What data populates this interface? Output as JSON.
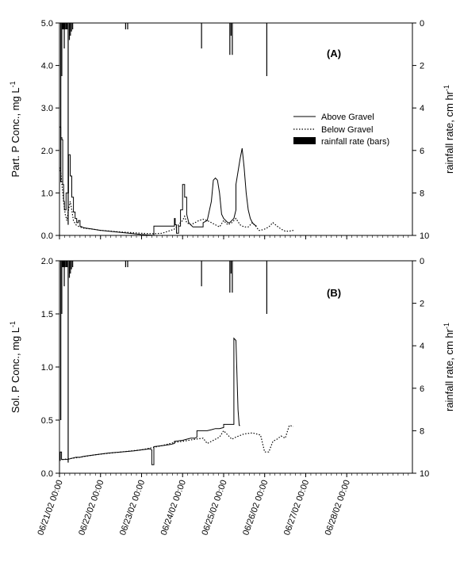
{
  "chart_data": [
    {
      "type": "line",
      "panel_label": "(A)",
      "ylabel_prefix": "Part. P Conc., mg L",
      "ylabel_sup": "-1",
      "y2label_prefix": "rainfall rate, cm hr",
      "y2label_sup": "-1",
      "ylim": [
        0,
        5.0
      ],
      "y_ticks": [
        "0.0",
        "1.0",
        "2.0",
        "3.0",
        "4.0",
        "5.0"
      ],
      "y2lim": [
        0,
        10
      ],
      "y2_reversed": true,
      "y2_ticks": [
        "0",
        "2",
        "4",
        "6",
        "8",
        "10"
      ],
      "xlim": [
        0,
        8.6
      ],
      "legend": {
        "position": "right",
        "items": [
          {
            "label": "Above Gravel",
            "style": "solid"
          },
          {
            "label": "Below Gravel",
            "style": "dotted"
          },
          {
            "label": "rainfall rate (bars)",
            "style": "bar"
          }
        ]
      },
      "series": [
        {
          "name": "Above Gravel",
          "style": "solid",
          "x": [
            0.0,
            0.03,
            0.03,
            0.06,
            0.06,
            0.08,
            0.08,
            0.1,
            0.1,
            0.12,
            0.12,
            0.16,
            0.16,
            0.22,
            0.22,
            0.26,
            0.26,
            0.3,
            0.3,
            0.34,
            0.34,
            0.38,
            0.38,
            0.42,
            0.42,
            0.46,
            0.46,
            0.5,
            0.5,
            0.55,
            0.6,
            0.8,
            1.0,
            1.5,
            2.0,
            2.2,
            2.3,
            2.3,
            2.8,
            2.8,
            2.82,
            2.82,
            2.85,
            2.85,
            2.9,
            2.9,
            2.95,
            2.95,
            3.0,
            3.0,
            3.05,
            3.05,
            3.1,
            3.1,
            3.15,
            3.2,
            3.25,
            3.3,
            3.35,
            3.4,
            3.5,
            3.5,
            3.6,
            3.7,
            3.75,
            3.8,
            3.85,
            3.9,
            3.95,
            4.0,
            4.05,
            4.1,
            4.15,
            4.2,
            4.25,
            4.3,
            4.3,
            4.4,
            4.45,
            4.5,
            4.55,
            4.6,
            4.65,
            4.7,
            4.75,
            4.8,
            4.8
          ],
          "y": [
            2.55,
            2.55,
            2.3,
            2.3,
            2.25,
            2.25,
            1.2,
            1.2,
            0.8,
            0.8,
            0.6,
            0.6,
            1.0,
            1.0,
            1.9,
            1.9,
            1.4,
            1.4,
            0.9,
            0.9,
            0.55,
            0.55,
            0.4,
            0.4,
            0.3,
            0.3,
            0.35,
            0.35,
            0.22,
            0.2,
            0.18,
            0.15,
            0.12,
            0.07,
            0.02,
            0.01,
            0.0,
            0.22,
            0.22,
            0.4,
            0.4,
            0.25,
            0.25,
            0.05,
            0.05,
            0.22,
            0.22,
            0.6,
            0.6,
            1.2,
            1.2,
            0.9,
            0.9,
            0.5,
            0.3,
            0.25,
            0.2,
            0.2,
            0.2,
            0.2,
            0.2,
            0.3,
            0.35,
            0.8,
            1.3,
            1.35,
            1.3,
            1.0,
            0.5,
            0.4,
            0.35,
            0.3,
            0.3,
            0.35,
            0.4,
            0.6,
            1.2,
            1.8,
            2.05,
            1.6,
            1.0,
            0.6,
            0.4,
            0.3,
            0.25,
            0.22,
            0.22
          ]
        },
        {
          "name": "Below Gravel",
          "style": "dotted",
          "x": [
            0.0,
            0.03,
            0.06,
            0.1,
            0.14,
            0.18,
            0.22,
            0.26,
            0.3,
            0.34,
            0.4,
            0.45,
            0.5,
            0.55,
            0.6,
            0.8,
            1.0,
            1.5,
            2.0,
            2.3,
            2.5,
            2.8,
            3.0,
            3.05,
            3.1,
            3.2,
            3.3,
            3.4,
            3.5,
            3.6,
            3.7,
            3.8,
            3.9,
            4.0,
            4.1,
            4.2,
            4.3,
            4.4,
            4.5,
            4.6,
            4.7,
            4.8,
            4.85,
            4.9,
            5.0,
            5.1,
            5.2,
            5.3,
            5.4,
            5.5,
            5.6,
            5.7
          ],
          "y": [
            1.6,
            1.5,
            1.2,
            0.8,
            0.5,
            0.35,
            0.6,
            0.8,
            0.6,
            0.35,
            0.25,
            0.22,
            0.2,
            0.18,
            0.17,
            0.15,
            0.12,
            0.08,
            0.05,
            0.04,
            0.05,
            0.15,
            0.35,
            0.45,
            0.3,
            0.25,
            0.3,
            0.35,
            0.38,
            0.35,
            0.3,
            0.25,
            0.2,
            0.35,
            0.25,
            0.3,
            0.4,
            0.25,
            0.2,
            0.2,
            0.3,
            0.2,
            0.12,
            0.12,
            0.15,
            0.2,
            0.3,
            0.22,
            0.15,
            0.1,
            0.1,
            0.12
          ]
        },
        {
          "name": "rainfall rate (bars)",
          "style": "bar",
          "axis": "right",
          "bars": [
            {
              "x": 0.02,
              "w": 0.015,
              "v": 7.5
            },
            {
              "x": 0.045,
              "w": 0.015,
              "v": 2.5
            },
            {
              "x": 0.065,
              "w": 0.015,
              "v": 0.3
            },
            {
              "x": 0.085,
              "w": 0.015,
              "v": 0.3
            },
            {
              "x": 0.105,
              "w": 0.015,
              "v": 1.2
            },
            {
              "x": 0.125,
              "w": 0.015,
              "v": 0.3
            },
            {
              "x": 0.15,
              "w": 0.015,
              "v": 0.3
            },
            {
              "x": 0.175,
              "w": 0.015,
              "v": 0.3
            },
            {
              "x": 0.2,
              "w": 0.02,
              "v": 9.5
            },
            {
              "x": 0.23,
              "w": 0.015,
              "v": 0.8
            },
            {
              "x": 0.255,
              "w": 0.015,
              "v": 0.6
            },
            {
              "x": 0.28,
              "w": 0.015,
              "v": 0.4
            },
            {
              "x": 0.31,
              "w": 0.015,
              "v": 0.3
            },
            {
              "x": 1.6,
              "w": 0.012,
              "v": 0.3
            },
            {
              "x": 1.65,
              "w": 0.012,
              "v": 0.3
            },
            {
              "x": 3.45,
              "w": 0.012,
              "v": 1.2
            },
            {
              "x": 4.14,
              "w": 0.015,
              "v": 1.5
            },
            {
              "x": 4.17,
              "w": 0.015,
              "v": 0.6
            },
            {
              "x": 4.2,
              "w": 0.015,
              "v": 1.5
            },
            {
              "x": 5.04,
              "w": 0.012,
              "v": 2.5
            }
          ]
        }
      ]
    },
    {
      "type": "line",
      "panel_label": "(B)",
      "ylabel_prefix": "Sol. P Conc., mg L",
      "ylabel_sup": "-1",
      "y2label_prefix": "rainfall rate, cm hr",
      "y2label_sup": "-1",
      "ylim": [
        0,
        2.0
      ],
      "y_ticks": [
        "0.0",
        "0.5",
        "1.0",
        "1.5",
        "2.0"
      ],
      "y2lim": [
        0,
        10
      ],
      "y2_reversed": true,
      "y2_ticks": [
        "0",
        "2",
        "4",
        "6",
        "8",
        "10"
      ],
      "xlim": [
        0,
        8.6
      ],
      "x_tick_labels": [
        "06/21/02 00:00",
        "06/22/02 00:00",
        "06/23/02 00:00",
        "06/24/02 00:00",
        "06/25/02 00:00",
        "06/26/02 00:00",
        "06/27/02 00:00",
        "06/28/02 00:00"
      ],
      "x_tick_values": [
        0,
        1,
        2,
        3,
        4,
        5,
        6,
        7
      ],
      "series": [
        {
          "name": "Above Gravel",
          "style": "solid",
          "x": [
            0.0,
            0.02,
            0.02,
            0.05,
            0.05,
            0.1,
            0.2,
            0.3,
            0.4,
            0.5,
            0.6,
            0.8,
            1.0,
            1.2,
            1.5,
            1.8,
            2.0,
            2.2,
            2.25,
            2.25,
            2.3,
            2.3,
            2.5,
            2.7,
            2.8,
            2.8,
            3.0,
            3.1,
            3.2,
            3.3,
            3.35,
            3.35,
            3.5,
            3.6,
            3.7,
            3.8,
            3.9,
            4.0,
            4.0,
            4.1,
            4.2,
            4.25,
            4.25,
            4.3,
            4.35,
            4.38,
            4.4
          ],
          "y": [
            0.12,
            0.12,
            0.2,
            0.2,
            0.13,
            0.13,
            0.13,
            0.14,
            0.15,
            0.15,
            0.16,
            0.17,
            0.18,
            0.19,
            0.2,
            0.21,
            0.22,
            0.23,
            0.22,
            0.08,
            0.08,
            0.25,
            0.26,
            0.27,
            0.28,
            0.3,
            0.31,
            0.32,
            0.33,
            0.33,
            0.34,
            0.4,
            0.4,
            0.4,
            0.41,
            0.42,
            0.42,
            0.43,
            0.46,
            0.46,
            0.46,
            0.46,
            1.27,
            1.25,
            0.6,
            0.45,
            0.45
          ]
        },
        {
          "name": "Below Gravel",
          "style": "dotted",
          "x": [
            0.0,
            0.1,
            0.3,
            0.5,
            0.8,
            1.0,
            1.5,
            2.0,
            2.5,
            2.8,
            3.0,
            3.3,
            3.5,
            3.6,
            3.7,
            3.8,
            3.9,
            4.0,
            4.1,
            4.2,
            4.3,
            4.5,
            4.7,
            4.9,
            5.0,
            5.1,
            5.2,
            5.3,
            5.4,
            5.5,
            5.6,
            5.7
          ],
          "y": [
            0.13,
            0.13,
            0.14,
            0.15,
            0.17,
            0.18,
            0.2,
            0.22,
            0.26,
            0.29,
            0.3,
            0.32,
            0.33,
            0.28,
            0.3,
            0.32,
            0.34,
            0.4,
            0.36,
            0.32,
            0.34,
            0.37,
            0.38,
            0.36,
            0.2,
            0.2,
            0.3,
            0.32,
            0.35,
            0.33,
            0.45,
            0.44
          ]
        },
        {
          "name": "rainfall rate (bars)",
          "style": "bar",
          "axis": "right",
          "bars": [
            {
              "x": 0.02,
              "w": 0.015,
              "v": 7.5
            },
            {
              "x": 0.045,
              "w": 0.015,
              "v": 2.5
            },
            {
              "x": 0.065,
              "w": 0.015,
              "v": 0.3
            },
            {
              "x": 0.085,
              "w": 0.015,
              "v": 0.3
            },
            {
              "x": 0.105,
              "w": 0.015,
              "v": 1.2
            },
            {
              "x": 0.125,
              "w": 0.015,
              "v": 0.3
            },
            {
              "x": 0.15,
              "w": 0.015,
              "v": 0.3
            },
            {
              "x": 0.175,
              "w": 0.015,
              "v": 0.3
            },
            {
              "x": 0.2,
              "w": 0.02,
              "v": 9.5
            },
            {
              "x": 0.23,
              "w": 0.015,
              "v": 0.8
            },
            {
              "x": 0.255,
              "w": 0.015,
              "v": 0.6
            },
            {
              "x": 0.28,
              "w": 0.015,
              "v": 0.4
            },
            {
              "x": 0.31,
              "w": 0.015,
              "v": 0.3
            },
            {
              "x": 1.6,
              "w": 0.012,
              "v": 0.3
            },
            {
              "x": 1.65,
              "w": 0.012,
              "v": 0.3
            },
            {
              "x": 3.45,
              "w": 0.012,
              "v": 1.2
            },
            {
              "x": 4.14,
              "w": 0.015,
              "v": 1.5
            },
            {
              "x": 4.17,
              "w": 0.015,
              "v": 0.6
            },
            {
              "x": 4.2,
              "w": 0.015,
              "v": 1.5
            },
            {
              "x": 5.04,
              "w": 0.012,
              "v": 2.5
            }
          ]
        }
      ]
    }
  ]
}
